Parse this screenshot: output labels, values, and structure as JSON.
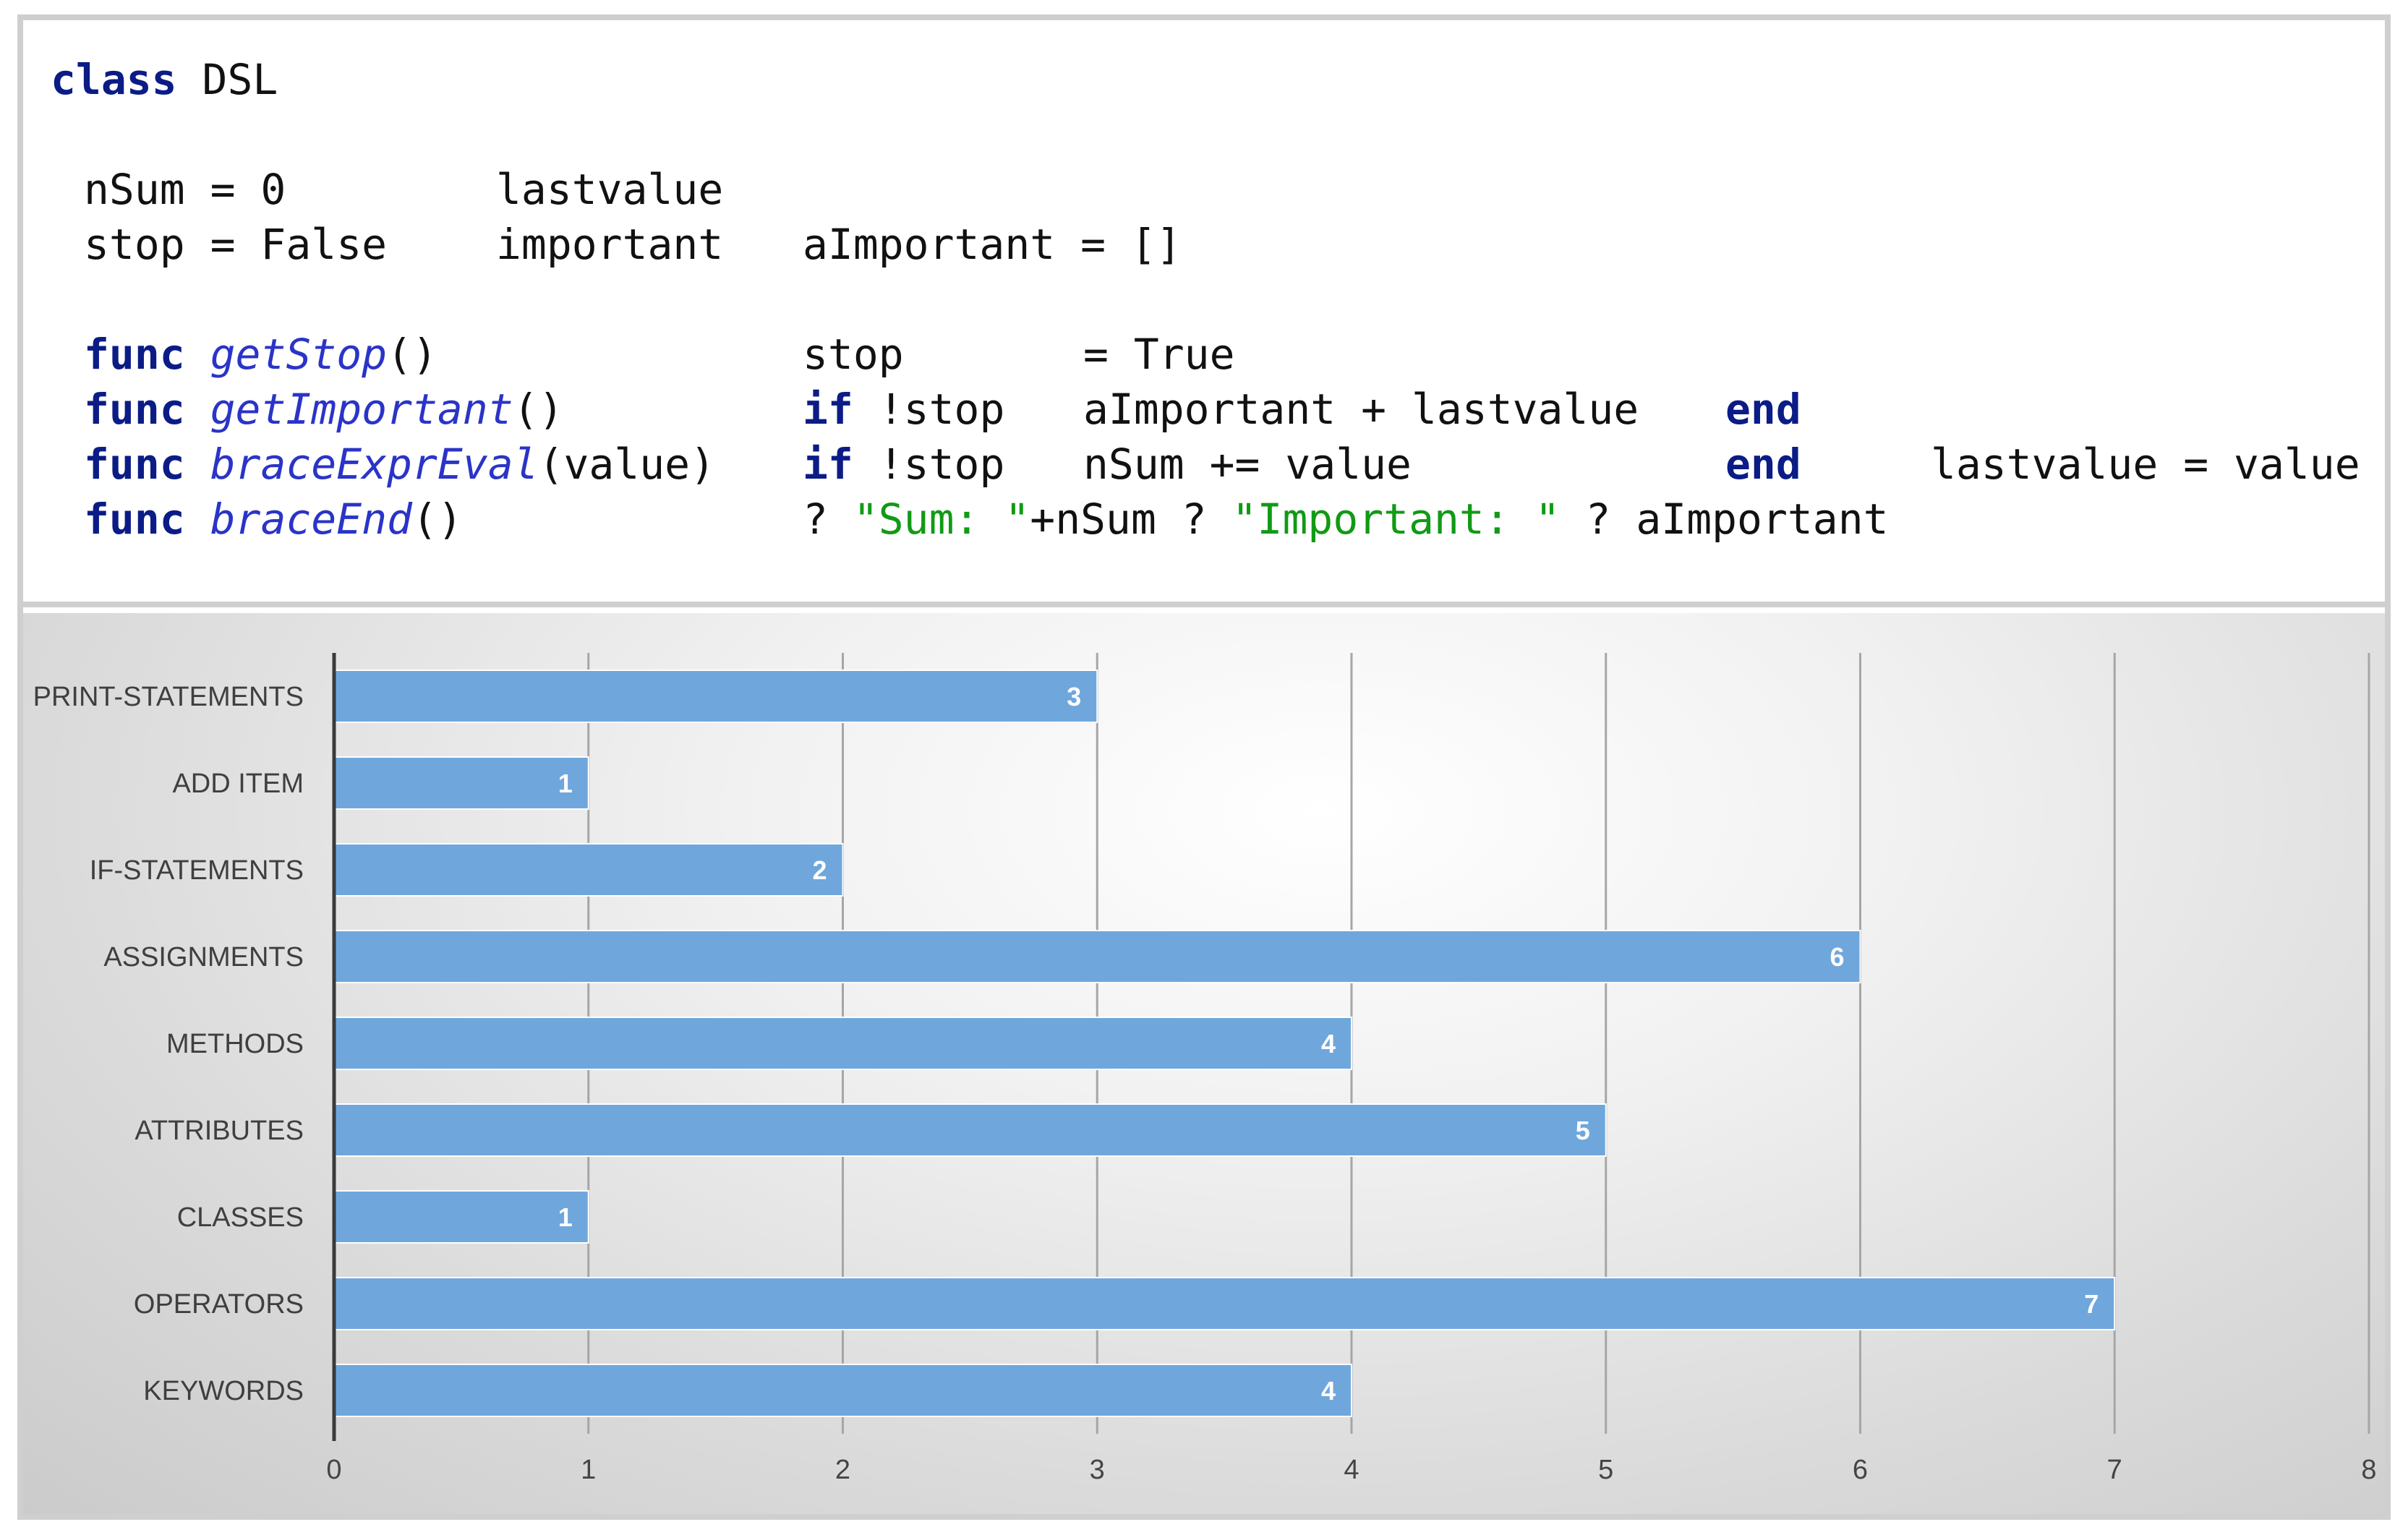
{
  "code": {
    "class_keyword": "class",
    "class_name": "DSL",
    "line2_a": "nSum = 0",
    "line2_b": "lastvalue",
    "line3_a": "stop = False",
    "line3_b": "important",
    "line3_c": "aImportant = []",
    "func_keyword": "func",
    "f1_name": "getStop",
    "f1_params": "()",
    "f1_body_a": "stop",
    "f1_body_b": "= True",
    "f2_name": "getImportant",
    "f2_params": "()",
    "if_keyword": "if",
    "f2_cond": "!stop",
    "f2_body": "aImportant + lastvalue",
    "end_keyword": "end",
    "f3_name": "braceExprEval",
    "f3_params": "(value)",
    "f3_cond": "!stop",
    "f3_body": "nSum += value",
    "f3_after": "lastvalue = value",
    "f4_name": "braceEnd",
    "f4_params": "()",
    "f4_q1": "?",
    "f4_str1": "\"Sum: \"",
    "f4_mid": "+nSum ?",
    "f4_str2": "\"Important: \"",
    "f4_end": "? aImportant"
  },
  "chart_data": {
    "type": "bar",
    "orientation": "horizontal",
    "categories": [
      "PRINT-STATEMENTS",
      "ADD ITEM",
      "IF-STATEMENTS",
      "ASSIGNMENTS",
      "METHODS",
      "ATTRIBUTES",
      "CLASSES",
      "OPERATORS",
      "KEYWORDS"
    ],
    "values": [
      3,
      1,
      2,
      6,
      4,
      5,
      1,
      7,
      4
    ],
    "xlim": [
      0,
      8
    ],
    "xticks": [
      "0",
      "1",
      "2",
      "3",
      "4",
      "5",
      "6",
      "7",
      "8"
    ],
    "grid": true,
    "data_labels": true,
    "bar_color": "#6fa7dc",
    "title": "",
    "xlabel": "",
    "ylabel": ""
  }
}
